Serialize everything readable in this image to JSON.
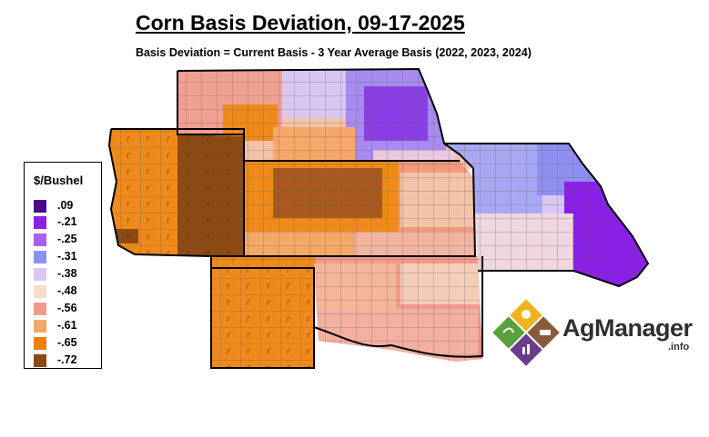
{
  "title": "Corn Basis Deviation, 09-17-2025",
  "subtitle": "Basis Deviation = Current Basis - 3 Year Average Basis (2022, 2023, 2024)",
  "legend": {
    "title": "$/Bushel",
    "items": [
      {
        "label": ".09",
        "color": "#4b0a8c"
      },
      {
        "label": "-.21",
        "color": "#8a1fe6"
      },
      {
        "label": "-.25",
        "color": "#a95ff0"
      },
      {
        "label": "-.31",
        "color": "#8f8ff2"
      },
      {
        "label": "-.38",
        "color": "#d9c6f2"
      },
      {
        "label": "-.48",
        "color": "#f6dccd"
      },
      {
        "label": "-.56",
        "color": "#f19a8c"
      },
      {
        "label": "-.61",
        "color": "#f5a868"
      },
      {
        "label": "-.65",
        "color": "#ef7f10"
      },
      {
        "label": "-.72",
        "color": "#8c4a12"
      }
    ]
  },
  "logo": {
    "brand": "AgManager",
    "suffix": ".info",
    "colors": [
      "#f0b41e",
      "#8a5a3c",
      "#6a3c8c",
      "#5aa03c"
    ]
  }
}
